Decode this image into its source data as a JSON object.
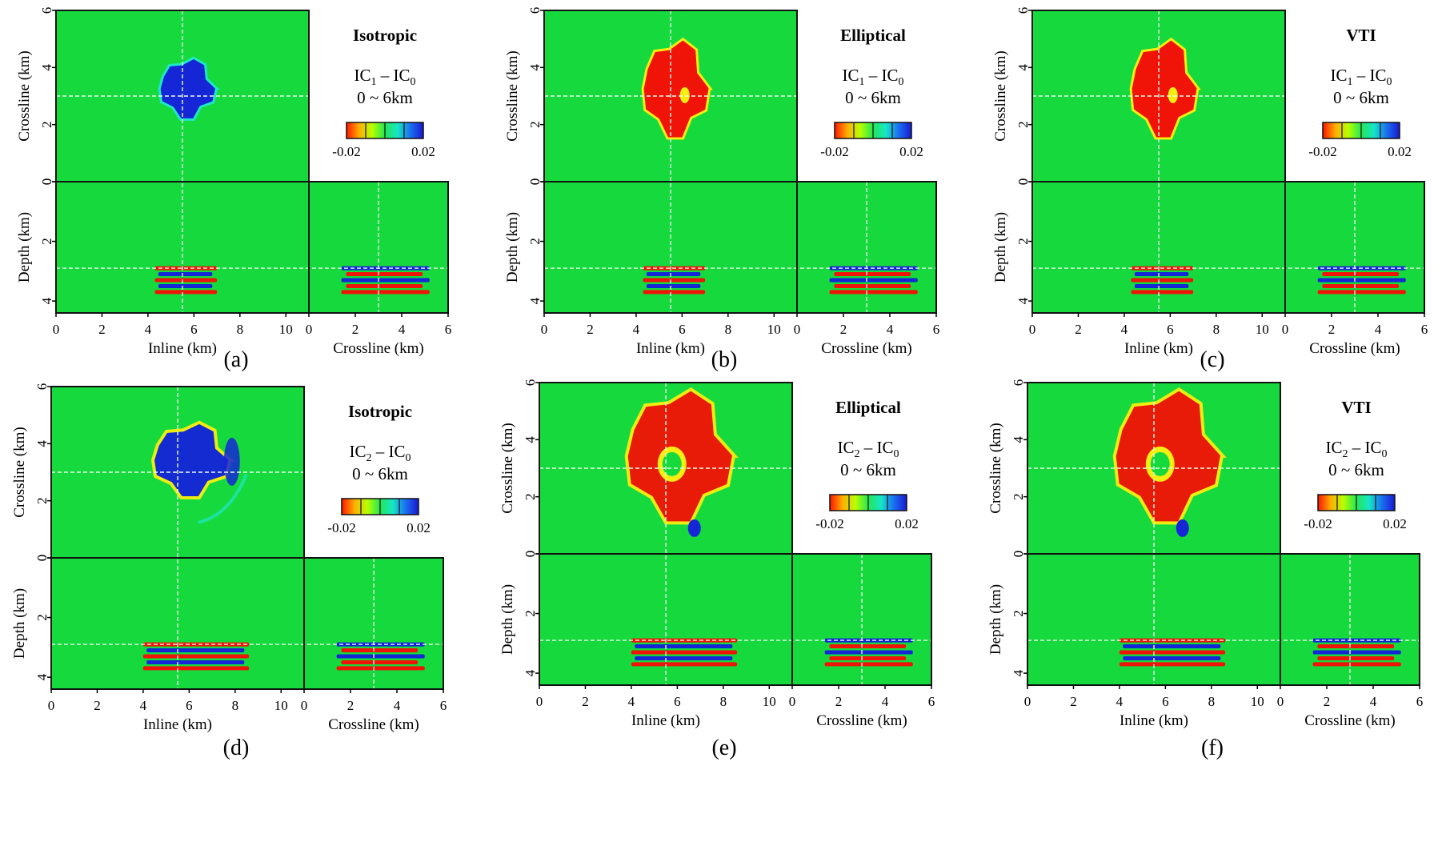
{
  "colors": {
    "background": "#16d93e",
    "positive": "#ef1407",
    "negative": "#1426d6",
    "cyan": "#1fe7c8",
    "yellow": "#f5ee10",
    "guide": "#e9ffe9",
    "frame": "#111111"
  },
  "colorbar": {
    "ticks": [
      "-0.02",
      "0.02"
    ],
    "stops": [
      "#ff1500",
      "#ffae00",
      "#b8ff00",
      "#24e655",
      "#16e6c6",
      "#1a6ff2",
      "#1919cf"
    ],
    "vmin": -0.02,
    "vmax": 0.02
  },
  "panels": [
    {
      "id": "a",
      "caption": "(a)",
      "title": "Isotropic",
      "diff_base": "IC",
      "diff_sub1": "1",
      "diff_sub0": "0",
      "range": "0 ~ 6km",
      "anomaly": "negative",
      "ring": false
    },
    {
      "id": "b",
      "caption": "(b)",
      "title": "Elliptical",
      "diff_base": "IC",
      "diff_sub1": "1",
      "diff_sub0": "0",
      "range": "0 ~ 6km",
      "anomaly": "positive",
      "ring": false
    },
    {
      "id": "c",
      "caption": "(c)",
      "title": "VTI",
      "diff_base": "IC",
      "diff_sub1": "1",
      "diff_sub0": "0",
      "range": "0 ~ 6km",
      "anomaly": "positive",
      "ring": false
    },
    {
      "id": "d",
      "caption": "(d)",
      "title": "Isotropic",
      "diff_base": "IC",
      "diff_sub1": "2",
      "diff_sub0": "0",
      "range": "0 ~ 6km",
      "anomaly": "negative",
      "ring": true
    },
    {
      "id": "e",
      "caption": "(e)",
      "title": "Elliptical",
      "diff_base": "IC",
      "diff_sub1": "2",
      "diff_sub0": "0",
      "range": "0 ~ 6km",
      "anomaly": "positive",
      "ring": true
    },
    {
      "id": "f",
      "caption": "(f)",
      "title": "VTI",
      "diff_base": "IC",
      "diff_sub1": "2",
      "diff_sub0": "0",
      "range": "0 ~ 6km",
      "anomaly": "positive",
      "ring": true
    }
  ],
  "chart_data": {
    "type": "heatmap",
    "colorbar_range": [
      -0.02,
      0.02
    ],
    "map_view": {
      "xlabel": "",
      "ylabel": "Crossline (km)",
      "xlim": [
        0,
        11
      ],
      "ylim": [
        0,
        6
      ],
      "yticks": [
        0,
        2,
        4,
        6
      ]
    },
    "inline_section": {
      "xlabel": "Inline (km)",
      "ylabel": "Depth (km)",
      "xlim": [
        0,
        11
      ],
      "ylim": [
        4.4,
        0
      ],
      "xticks": [
        0,
        2,
        4,
        6,
        8,
        10
      ],
      "yticks": [
        0,
        2,
        4
      ]
    },
    "crossline_section": {
      "xlabel": "Crossline (km)",
      "xlim": [
        0,
        6
      ],
      "xticks": [
        0,
        2,
        4,
        6
      ]
    },
    "guides": {
      "inline_km": 5.5,
      "crossline_km": 3.0,
      "depth_km": 2.9
    },
    "reflector_depths_km": [
      2.9,
      3.1,
      3.3,
      3.5,
      3.7
    ]
  }
}
